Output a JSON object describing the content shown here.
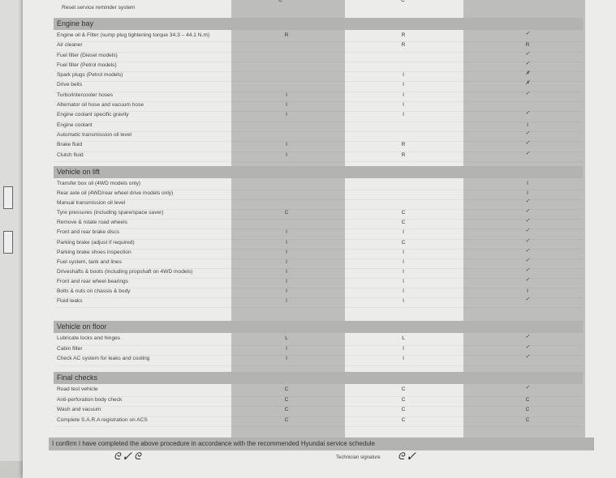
{
  "top_partial": {
    "col_a": "C",
    "col_b": "C",
    "label": "Reset service reminder system"
  },
  "sections": [
    {
      "title": "Engine bay",
      "rows": [
        {
          "label": "Engine oil & Filter (sump plug tightening torque 34.3 – 44.1 N.m)",
          "a": "R",
          "b": "R",
          "c": "✓"
        },
        {
          "label": "Air cleaner",
          "a": "",
          "b": "R",
          "c": "R"
        },
        {
          "label": "Fuel filter (Diesel models)",
          "a": "",
          "b": "",
          "c": "✓"
        },
        {
          "label": "Fuel filter (Petrol models)",
          "a": "",
          "b": "",
          "c": "✓"
        },
        {
          "label": "Spark plugs (Petrol models)",
          "a": "",
          "b": "I",
          "c": "✗"
        },
        {
          "label": "Drive belts",
          "a": "",
          "b": "I",
          "c": "✗"
        },
        {
          "label": "Turbo/intercooler hoses",
          "a": "I",
          "b": "I",
          "c": "✓"
        },
        {
          "label": "Alternator oil hose and vacuum hose",
          "a": "I",
          "b": "I",
          "c": ""
        },
        {
          "label": "Engine coolant specific gravity",
          "a": "I",
          "b": "I",
          "c": "✓"
        },
        {
          "label": "Engine coolant",
          "a": "",
          "b": "",
          "c": "I"
        },
        {
          "label": "Automatic transmission oil level",
          "a": "",
          "b": "",
          "c": "✓"
        },
        {
          "label": "Brake fluid",
          "a": "I",
          "b": "R",
          "c": "✓"
        },
        {
          "label": "Clutch fluid",
          "a": "I",
          "b": "R",
          "c": "✓"
        }
      ]
    },
    {
      "title": "Vehicle on lift",
      "rows": [
        {
          "label": "Transfer box oil (4WD models only)",
          "a": "",
          "b": "",
          "c": "I"
        },
        {
          "label": "Rear axle oil (4WD/rear wheel drive models only)",
          "a": "",
          "b": "",
          "c": "I"
        },
        {
          "label": "Manual transmission oil level",
          "a": "",
          "b": "",
          "c": "✓"
        },
        {
          "label": "Tyre pressures (including spare/space saver)",
          "a": "C",
          "b": "C",
          "c": "✓"
        },
        {
          "label": "Remove & rotate road wheels",
          "a": "",
          "b": "C",
          "c": "✓"
        },
        {
          "label": "Front and rear brake discs",
          "a": "I",
          "b": "I",
          "c": "✓"
        },
        {
          "label": "Parking brake (adjust if required)",
          "a": "I",
          "b": "C",
          "c": "✓"
        },
        {
          "label": "Parking brake shoes inspection",
          "a": "I",
          "b": "I",
          "c": "✓"
        },
        {
          "label": "Fuel system, tank and lines",
          "a": "I",
          "b": "I",
          "c": "✓"
        },
        {
          "label": "Driveshafts & boots (including propshaft on 4WD models)",
          "a": "I",
          "b": "I",
          "c": "✓"
        },
        {
          "label": "Front and rear wheel bearings",
          "a": "I",
          "b": "I",
          "c": "✓"
        },
        {
          "label": "Bolts & nuts on chassis & body",
          "a": "I",
          "b": "I",
          "c": "I"
        },
        {
          "label": "Fluid leaks",
          "a": "I",
          "b": "I",
          "c": "✓"
        }
      ]
    },
    {
      "title": "Vehicle on floor",
      "rows": [
        {
          "label": "Lubricate locks and hinges",
          "a": "L",
          "b": "L",
          "c": "✓"
        },
        {
          "label": "Cabin filter",
          "a": "I",
          "b": "I",
          "c": "✓"
        },
        {
          "label": "Check AC system for leaks and cooling",
          "a": "I",
          "b": "I",
          "c": "✓"
        }
      ]
    },
    {
      "title": "Final checks",
      "rows": [
        {
          "label": "Road test vehicle",
          "a": "C",
          "b": "C",
          "c": "✓"
        },
        {
          "label": "Anti-perforation body check",
          "a": "C",
          "b": "C",
          "c": "C"
        },
        {
          "label": "Wash and vacuum",
          "a": "C",
          "b": "C",
          "c": "C"
        },
        {
          "label": "Complete S.A.R.A registration on ACS",
          "a": "C",
          "b": "C",
          "c": "C"
        }
      ]
    }
  ],
  "confirm_text": "I confirm I have completed the above procedure in accordance with the recommended Hyundai service schedule",
  "technician_signature_label": "Technician signature"
}
